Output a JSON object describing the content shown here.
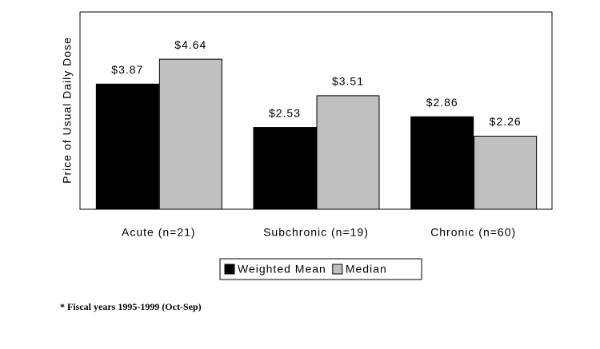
{
  "chart_data": {
    "type": "bar",
    "y_label": "Price of Usual Daily Dose",
    "categories": [
      "Acute (n=21)",
      "Subchronic (n=19)",
      "Chronic (n=60)"
    ],
    "series": [
      {
        "name": "Weighted Mean",
        "color": "#000000",
        "values": [
          3.87,
          2.53,
          2.86
        ],
        "value_labels": [
          "$3.87",
          "$2.53",
          "$2.86"
        ]
      },
      {
        "name": "Median",
        "color": "#c0c0c0",
        "values": [
          4.64,
          3.51,
          2.26
        ],
        "value_labels": [
          "$4.64",
          "$3.51",
          "$2.26"
        ]
      }
    ],
    "ylim": [
      0,
      6.1
    ],
    "footnote": "* Fiscal years 1995-1999 (Oct-Sep)"
  }
}
